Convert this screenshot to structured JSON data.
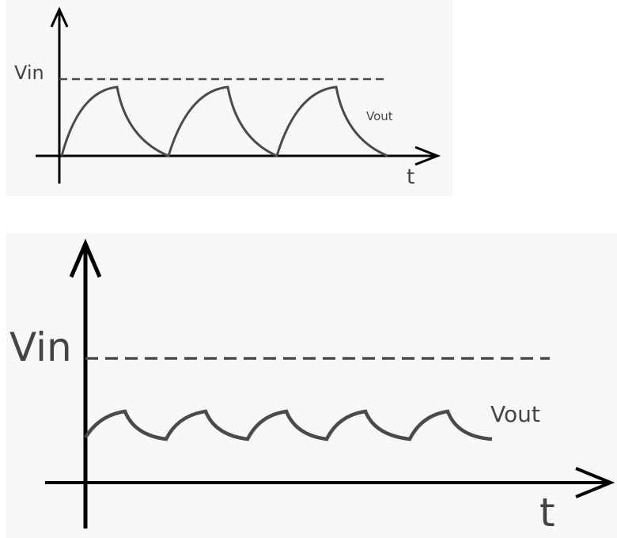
{
  "top_panel": {
    "y_label": "Vin",
    "curve_label": "Vout",
    "x_label": "t"
  },
  "bottom_panel": {
    "y_label": "Vin",
    "curve_label": "Vout",
    "x_label": "t"
  },
  "colors": {
    "axis": "#000000",
    "curve": "#4a4a4a",
    "dashed": "#4a4a4a",
    "panel_bg": "#f8f8f8"
  }
}
